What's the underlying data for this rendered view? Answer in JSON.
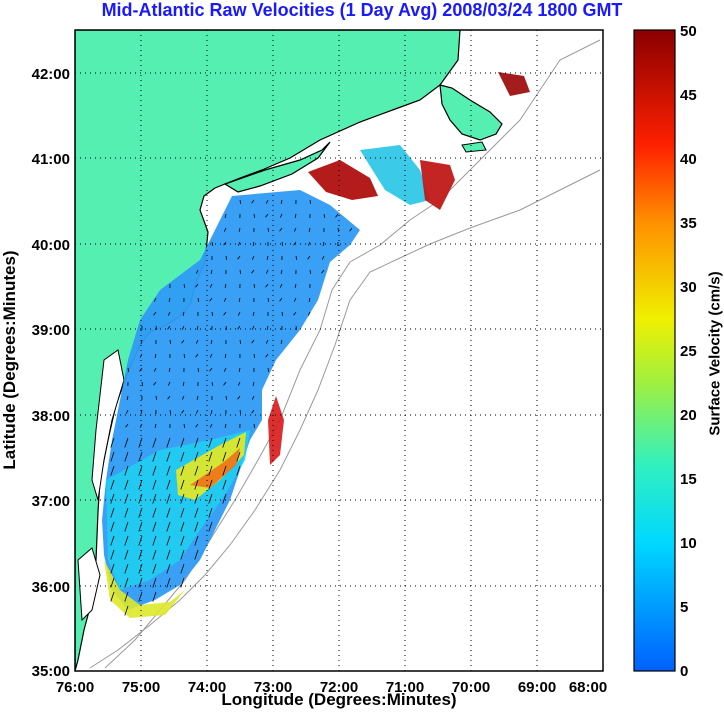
{
  "title": "Mid-Atlantic Raw Velocities (1 Day Avg) 2008/03/24 1800 GMT",
  "xlabel": "Longitude (Degrees:Minutes)",
  "ylabel": "Latitude (Degrees:Minutes)",
  "colorbar_label": "Surface Velocity (cm/s)",
  "x_ticks": [
    "76:00",
    "75:00",
    "74:00",
    "73:00",
    "72:00",
    "71:00",
    "70:00",
    "69:00",
    "68:00"
  ],
  "y_ticks": [
    "42:00",
    "41:00",
    "40:00",
    "39:00",
    "38:00",
    "37:00",
    "36:00",
    "35:00"
  ],
  "colorbar_ticks": [
    "50",
    "45",
    "40",
    "35",
    "30",
    "25",
    "20",
    "15",
    "10",
    "5",
    "0"
  ],
  "colors": {
    "land": "#55efb2",
    "title": "#1a1aff",
    "coastline": "#000000",
    "bathymetry": "#9a9a9a"
  },
  "map": {
    "lon_range": [
      -76,
      -68
    ],
    "lat_range": [
      35,
      42.5
    ],
    "velocity_range_cm_s": [
      0,
      50
    ],
    "grid": true
  }
}
